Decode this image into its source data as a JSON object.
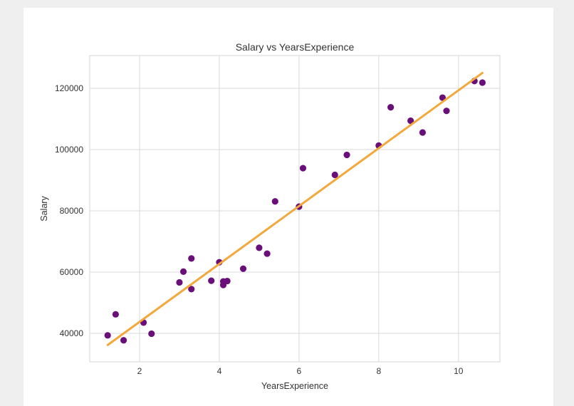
{
  "chart_data": {
    "type": "scatter",
    "title": "Salary vs YearsExperience",
    "xlabel": "YearsExperience",
    "ylabel": "Salary",
    "xlim": [
      0.75,
      11.04
    ],
    "ylim": [
      30700,
      130700
    ],
    "xticks": [
      2,
      4,
      6,
      8,
      10
    ],
    "yticks": [
      40000,
      60000,
      80000,
      100000,
      120000
    ],
    "grid": true,
    "point_color": "#6a0f7a",
    "line_color": "#f3a83b",
    "points": {
      "x": [
        1.2,
        1.4,
        1.6,
        2.1,
        2.3,
        3.0,
        3.1,
        3.3,
        3.3,
        3.8,
        4.0,
        4.1,
        4.1,
        4.2,
        4.6,
        5.0,
        5.2,
        5.4,
        6.0,
        6.1,
        6.9,
        7.2,
        8.0,
        8.3,
        8.8,
        9.1,
        9.6,
        9.7,
        10.4,
        10.6
      ],
      "y": [
        39343,
        46205,
        37731,
        43525,
        39891,
        56642,
        60150,
        54445,
        64445,
        57189,
        63218,
        55794,
        56957,
        57081,
        61111,
        67938,
        66029,
        83088,
        81363,
        93940,
        91738,
        98273,
        101302,
        113812,
        109431,
        105582,
        116969,
        112635,
        122391,
        121872
      ]
    },
    "fit_line": {
      "x": [
        1.2,
        10.6
      ],
      "y": [
        36190,
        125020
      ]
    }
  }
}
